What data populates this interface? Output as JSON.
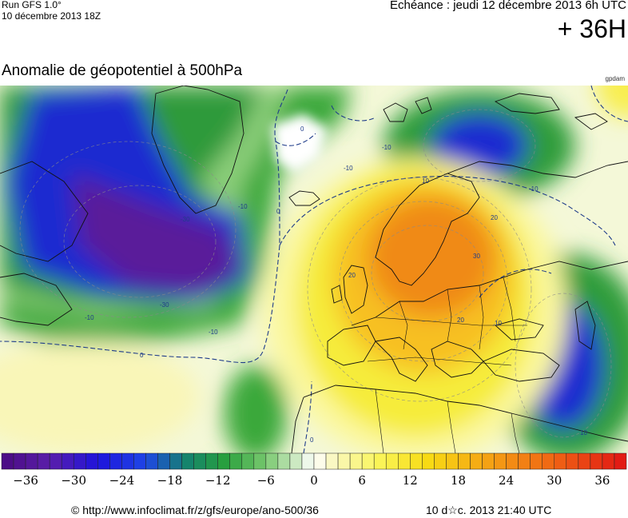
{
  "header": {
    "run": "Run GFS 1.0°",
    "run_date": "10 décembre 2013 18Z",
    "validity": "Echéance : jeudi 12 décembre 2013 6h UTC",
    "lead_time": "+ 36H",
    "product_title": "Anomalie de géopotentiel à 500hPa",
    "unit": "gpdam"
  },
  "map": {
    "contour_labels": [
      "0",
      "0",
      "0",
      "0",
      "-10",
      "-10",
      "-10",
      "-10",
      "-10",
      "-10",
      "-30",
      "-30",
      "10",
      "10",
      "10",
      "20",
      "20",
      "20",
      "30"
    ]
  },
  "color_scale": {
    "min": -39,
    "max": 39,
    "step": 1.5,
    "tick_values": [
      -36,
      -30,
      -24,
      -18,
      -12,
      -6,
      0,
      6,
      12,
      18,
      24,
      30,
      36
    ],
    "tick_labels": [
      "−36",
      "−30",
      "−24",
      "−18",
      "−12",
      "−6",
      "0",
      "6",
      "12",
      "18",
      "24",
      "30",
      "36"
    ]
  },
  "footer": {
    "url": "© http://www.infoclimat.fr/z/gfs/europe/ano-500/36",
    "generated": "10 d☆c. 2013 21:40 UTC"
  },
  "colors": {
    "deep_low": "#5a1a9a",
    "low": "#1414d2",
    "mid_low": "#1ea03c",
    "neutral": "#ffffff",
    "mid_high": "#f0e62a",
    "high": "#f07814",
    "contour": "#1f3c8a"
  }
}
